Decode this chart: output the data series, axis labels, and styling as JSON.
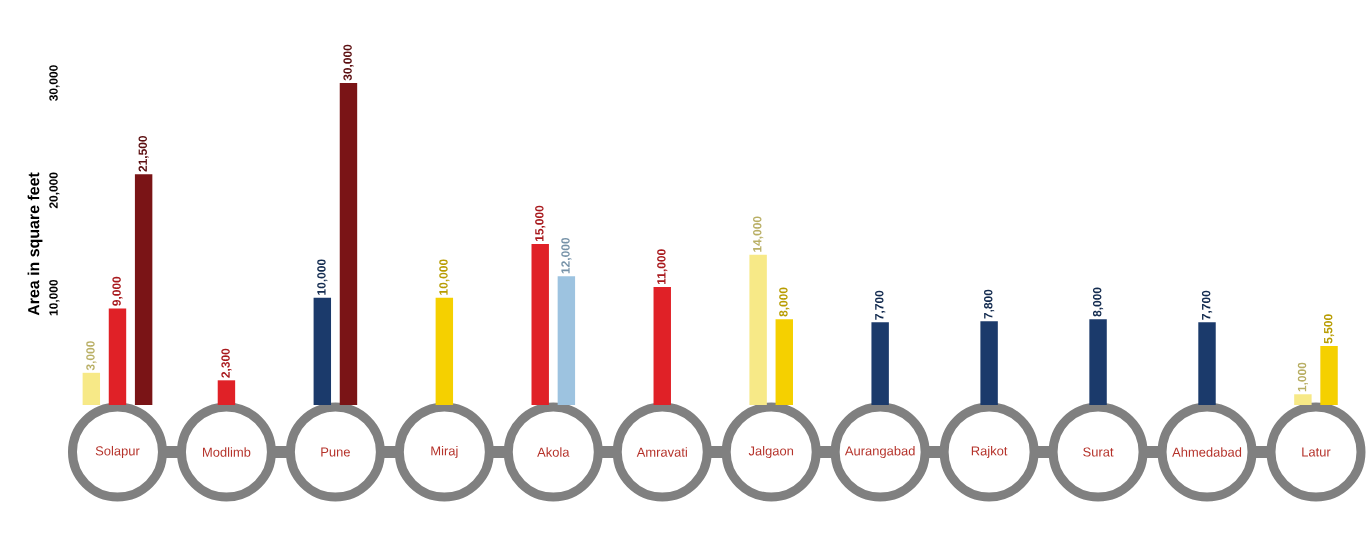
{
  "chart_data": {
    "type": "bar",
    "ylabel": "Area in square feet",
    "categories": [
      "Solapur",
      "Modlimb",
      "Pune",
      "Miraj",
      "Akola",
      "Amravati",
      "Jalgaon",
      "Aurangabad",
      "Rajkot",
      "Surat",
      "Ahmedabad",
      "Latur"
    ],
    "series": [
      {
        "color": "#f7e987",
        "values": [
          3000,
          null,
          null,
          null,
          null,
          null,
          14000,
          null,
          null,
          null,
          null,
          1000
        ],
        "value_labels": [
          "3,000",
          null,
          null,
          null,
          null,
          null,
          "14,000",
          null,
          null,
          null,
          null,
          "1,000"
        ]
      },
      {
        "color": "#e02127",
        "values": [
          9000,
          2300,
          null,
          null,
          15000,
          11000,
          null,
          null,
          null,
          null,
          null,
          null
        ],
        "value_labels": [
          "9,000",
          "2,300",
          null,
          null,
          "15,000",
          "11,000",
          null,
          null,
          null,
          null,
          null,
          null
        ]
      },
      {
        "color": "#1b3a6b",
        "values": [
          null,
          null,
          10000,
          null,
          null,
          null,
          null,
          7700,
          7800,
          8000,
          7700,
          null
        ],
        "value_labels": [
          null,
          null,
          "10,000",
          null,
          null,
          null,
          null,
          "7,700",
          "7,800",
          "8,000",
          "7,700",
          null
        ]
      },
      {
        "color": "#7a1416",
        "values": [
          21500,
          null,
          30000,
          null,
          null,
          null,
          null,
          null,
          null,
          null,
          null,
          null
        ],
        "value_labels": [
          "21,500",
          null,
          "30,000",
          null,
          null,
          null,
          null,
          null,
          null,
          null,
          null,
          null
        ]
      },
      {
        "color": "#f5d000",
        "values": [
          null,
          null,
          null,
          10000,
          null,
          null,
          8000,
          null,
          null,
          null,
          null,
          5500
        ],
        "value_labels": [
          null,
          null,
          null,
          "10,000",
          null,
          null,
          "8,000",
          null,
          null,
          null,
          null,
          "5,500"
        ]
      },
      {
        "color": "#9dc3e0",
        "values": [
          null,
          null,
          null,
          null,
          12000,
          null,
          null,
          null,
          null,
          null,
          null,
          null
        ],
        "value_labels": [
          null,
          null,
          null,
          null,
          "12,000",
          null,
          null,
          null,
          null,
          null,
          null,
          null
        ]
      }
    ],
    "ylim": [
      0,
      30000
    ],
    "yticks": [
      {
        "value": 10000,
        "label": "10,000"
      },
      {
        "value": 20000,
        "label": "20,000"
      },
      {
        "value": 30000,
        "label": "30,000"
      }
    ],
    "grid": false
  }
}
